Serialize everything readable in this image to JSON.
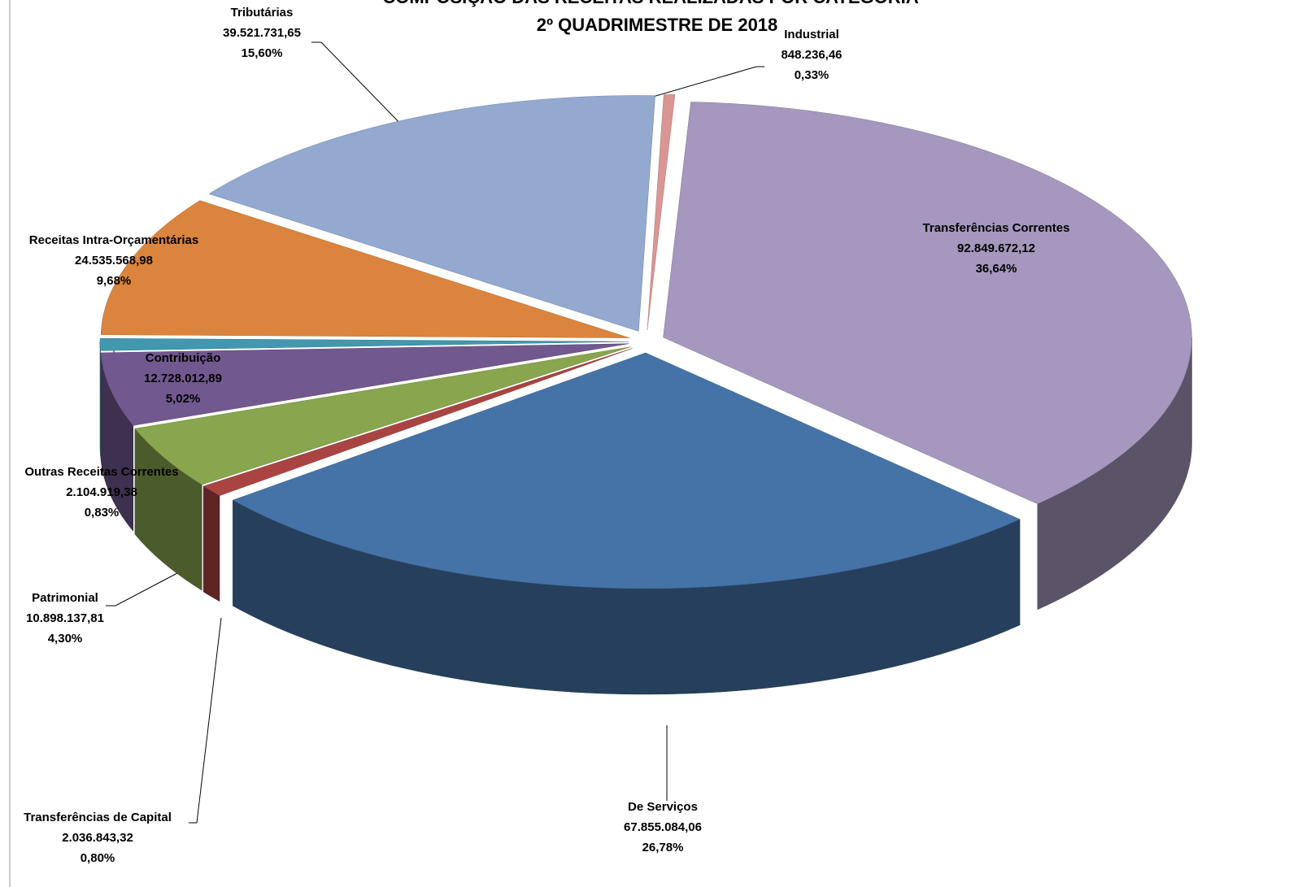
{
  "chart_data": {
    "type": "pie",
    "title": "COMPOSIÇÃO DAS RECEITAS REALIZADAS POR  CATEGORIA",
    "subtitle": "2º QUADRIMESTRE DE  2018",
    "categories": [
      "Transferências Correntes",
      "De Serviços",
      "Transferências de Capital",
      "Patrimonial",
      "Contribuição",
      "Outras Receitas Correntes",
      "Receitas Intra-Orçamentárias",
      "Tributárias",
      "Industrial"
    ],
    "values": [
      92849672.12,
      67855084.06,
      2036843.32,
      10898137.81,
      12728012.89,
      2104919.38,
      24535568.98,
      39521731.65,
      848236.46
    ],
    "value_labels": [
      "92.849.672,12",
      "67.855.084,06",
      "2.036.843,32",
      "10.898.137,81",
      "12.728.012,89",
      "2.104.919,38",
      "24.535.568,98",
      "39.521.731,65",
      "848.236,46"
    ],
    "percents": [
      36.64,
      26.78,
      0.8,
      4.3,
      5.02,
      0.83,
      9.68,
      15.6,
      0.33
    ],
    "percent_labels": [
      "36,64%",
      "26,78%",
      "0,80%",
      "4,30%",
      "5,02%",
      "0,83%",
      "9,68%",
      "15,60%",
      "0,33%"
    ],
    "colors": [
      "#a597bd",
      "#4573a7",
      "#a94442",
      "#89a54e",
      "#71588f",
      "#4198af",
      "#db843d",
      "#93a9cf",
      "#d99694"
    ]
  }
}
